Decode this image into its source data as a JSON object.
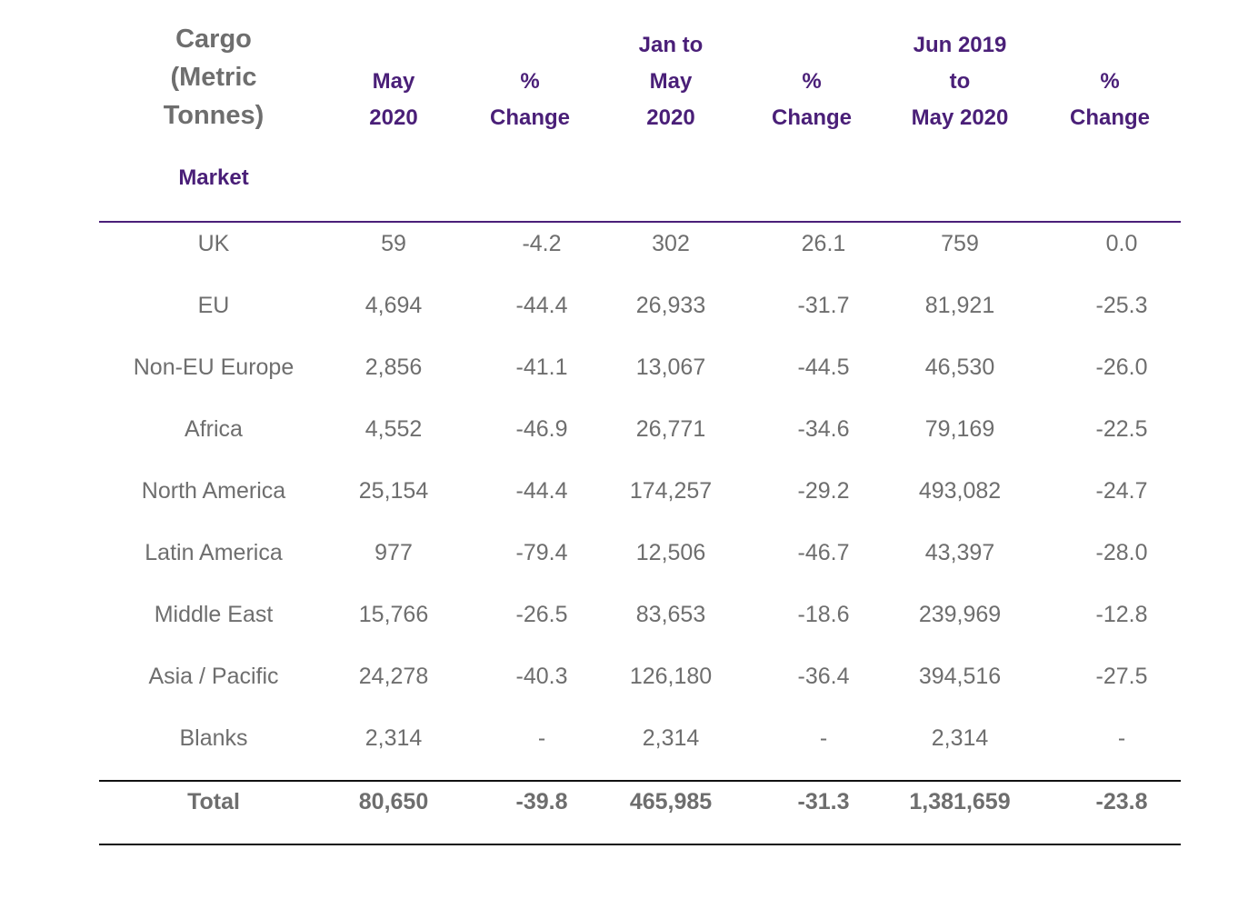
{
  "table": {
    "title_lines": [
      "Cargo",
      "(Metric",
      "Tonnes)"
    ],
    "market_label": "Market",
    "columns": [
      {
        "lines": [
          "May",
          "2020"
        ]
      },
      {
        "lines": [
          "%",
          "Change"
        ]
      },
      {
        "lines": [
          "Jan to",
          "May",
          "2020"
        ]
      },
      {
        "lines": [
          "%",
          "Change"
        ]
      },
      {
        "lines": [
          "Jun 2019",
          "to",
          "May 2020"
        ]
      },
      {
        "lines": [
          "%",
          "Change"
        ]
      }
    ],
    "rows": [
      [
        "UK",
        "59",
        "-4.2",
        "302",
        "26.1",
        "759",
        "0.0"
      ],
      [
        "EU",
        "4,694",
        "-44.4",
        "26,933",
        "-31.7",
        "81,921",
        "-25.3"
      ],
      [
        "Non-EU Europe",
        "2,856",
        "-41.1",
        "13,067",
        "-44.5",
        "46,530",
        "-26.0"
      ],
      [
        "Africa",
        "4,552",
        "-46.9",
        "26,771",
        "-34.6",
        "79,169",
        "-22.5"
      ],
      [
        "North America",
        "25,154",
        "-44.4",
        "174,257",
        "-29.2",
        "493,082",
        "-24.7"
      ],
      [
        "Latin America",
        "977",
        "-79.4",
        "12,506",
        "-46.7",
        "43,397",
        "-28.0"
      ],
      [
        "Middle East",
        "15,766",
        "-26.5",
        "83,653",
        "-18.6",
        "239,969",
        "-12.8"
      ],
      [
        "Asia / Pacific",
        "24,278",
        "-40.3",
        "126,180",
        "-36.4",
        "394,516",
        "-27.5"
      ],
      [
        "Blanks",
        "2,314",
        "-",
        "2,314",
        "-",
        "2,314",
        "-"
      ]
    ],
    "total": [
      "Total",
      "80,650",
      "-39.8",
      "465,985",
      "-31.3",
      "1,381,659",
      "-23.8"
    ]
  },
  "colors": {
    "header_purple": "#4a1f78",
    "body_gray": "#6e6e6e",
    "rule_black": "#111111"
  }
}
